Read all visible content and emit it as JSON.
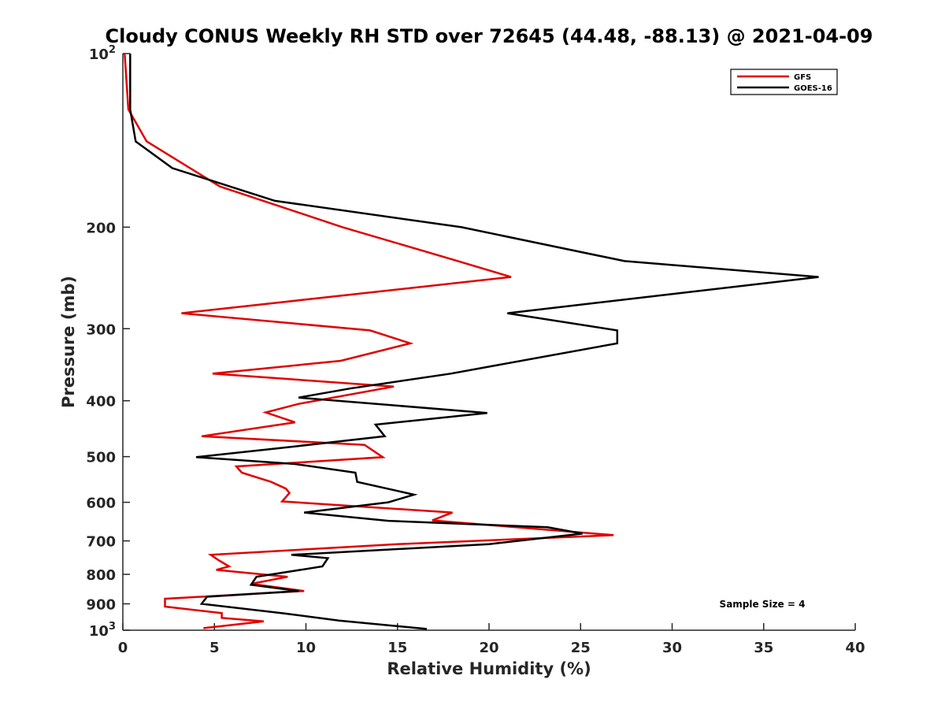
{
  "chart_data": {
    "type": "line",
    "title": "Cloudy CONUS Weekly RH STD over 72645 (44.48, -88.13) @ 2021-04-09",
    "xlabel": "Relative Humidity (%)",
    "ylabel": "Pressure (mb)",
    "xlim": [
      0,
      40
    ],
    "ylim": [
      100,
      1000
    ],
    "y_scale": "log",
    "y_reversed": true,
    "grid": false,
    "legend_position": "top-right",
    "xticks": [
      0,
      5,
      10,
      15,
      20,
      25,
      30,
      35,
      40
    ],
    "xtick_labels": [
      "0",
      "5",
      "10",
      "15",
      "20",
      "25",
      "30",
      "35",
      "40"
    ],
    "yticks": [
      100,
      200,
      300,
      400,
      500,
      600,
      700,
      800,
      900,
      1000
    ],
    "ytick_labels": [
      {
        "base": "10",
        "exp": "2"
      },
      {
        "base": "200",
        "exp": ""
      },
      {
        "base": "300",
        "exp": ""
      },
      {
        "base": "400",
        "exp": ""
      },
      {
        "base": "500",
        "exp": ""
      },
      {
        "base": "600",
        "exp": ""
      },
      {
        "base": "700",
        "exp": ""
      },
      {
        "base": "800",
        "exp": ""
      },
      {
        "base": "900",
        "exp": ""
      },
      {
        "base": "10",
        "exp": "3"
      }
    ],
    "annotation": "Sample Size = 4",
    "series": [
      {
        "name": "GFS",
        "color": "#e00000",
        "points": [
          [
            0.1,
            100
          ],
          [
            0.3,
            125
          ],
          [
            1.3,
            142
          ],
          [
            5.3,
            170
          ],
          [
            12.0,
            200
          ],
          [
            18.3,
            229
          ],
          [
            21.2,
            244
          ],
          [
            3.2,
            282
          ],
          [
            13.5,
            302
          ],
          [
            15.7,
            318
          ],
          [
            11.9,
            341
          ],
          [
            4.9,
            359
          ],
          [
            14.8,
            378
          ],
          [
            9.6,
            405
          ],
          [
            7.8,
            419
          ],
          [
            9.4,
            436
          ],
          [
            4.3,
            461
          ],
          [
            13.2,
            477
          ],
          [
            14.2,
            501
          ],
          [
            6.2,
            520
          ],
          [
            6.5,
            533
          ],
          [
            8.1,
            553
          ],
          [
            8.9,
            568
          ],
          [
            9.1,
            578
          ],
          [
            8.7,
            598
          ],
          [
            18.0,
            625
          ],
          [
            16.9,
            645
          ],
          [
            26.8,
            684
          ],
          [
            15.0,
            709
          ],
          [
            4.8,
            740
          ],
          [
            5.2,
            755
          ],
          [
            5.8,
            775
          ],
          [
            5.1,
            786
          ],
          [
            9.0,
            808
          ],
          [
            7.0,
            831
          ],
          [
            9.9,
            855
          ],
          [
            2.3,
            882
          ],
          [
            2.3,
            910
          ],
          [
            5.4,
            934
          ],
          [
            5.4,
            952
          ],
          [
            7.7,
            965
          ],
          [
            4.4,
            992
          ]
        ]
      },
      {
        "name": "GOES-16",
        "color": "#000000",
        "points": [
          [
            0.4,
            100
          ],
          [
            0.4,
            125
          ],
          [
            0.7,
            142
          ],
          [
            2.7,
            158
          ],
          [
            8.3,
            180
          ],
          [
            18.5,
            200
          ],
          [
            27.4,
            229
          ],
          [
            38.0,
            244
          ],
          [
            21.0,
            282
          ],
          [
            27.0,
            302
          ],
          [
            27.0,
            318
          ],
          [
            17.9,
            359
          ],
          [
            12.4,
            381
          ],
          [
            9.6,
            395
          ],
          [
            19.9,
            420
          ],
          [
            13.8,
            440
          ],
          [
            14.3,
            461
          ],
          [
            8.4,
            484
          ],
          [
            4.0,
            501
          ],
          [
            9.4,
            515
          ],
          [
            12.7,
            533
          ],
          [
            12.8,
            553
          ],
          [
            15.9,
            582
          ],
          [
            14.5,
            600
          ],
          [
            9.9,
            625
          ],
          [
            14.5,
            646
          ],
          [
            23.2,
            663
          ],
          [
            25.1,
            680
          ],
          [
            20.0,
            709
          ],
          [
            9.2,
            740
          ],
          [
            11.2,
            750
          ],
          [
            10.9,
            775
          ],
          [
            7.3,
            808
          ],
          [
            7.0,
            834
          ],
          [
            9.6,
            855
          ],
          [
            4.6,
            875
          ],
          [
            4.3,
            900
          ],
          [
            8.8,
            935
          ],
          [
            11.8,
            962
          ],
          [
            16.6,
            995
          ]
        ]
      }
    ]
  }
}
